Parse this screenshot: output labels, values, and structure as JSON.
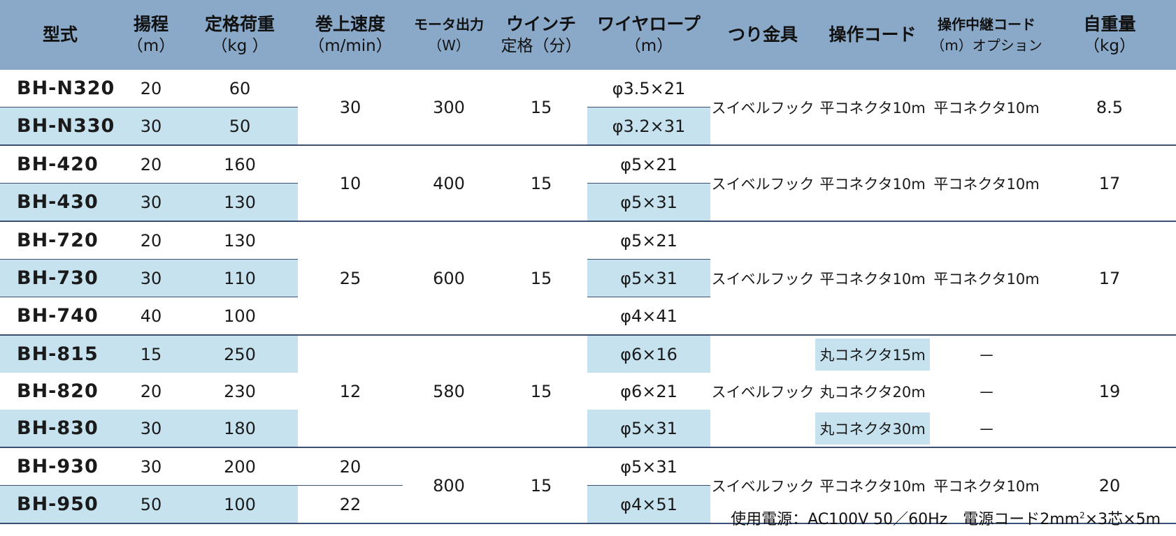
{
  "header": {
    "model": "型式",
    "lift": {
      "title": "揚程",
      "unit": "（m）"
    },
    "load": {
      "title": "定格荷重",
      "unit": "（kg ）"
    },
    "speed": {
      "title": "巻上速度",
      "unit": "（m/min）"
    },
    "motor": {
      "title": "モータ出力",
      "unit": "（W）"
    },
    "winch": {
      "title": "ウインチ",
      "unit": "定格（分）"
    },
    "wire": {
      "title": "ワイヤロープ",
      "unit": "（m）"
    },
    "fitting": {
      "title": "つり金具"
    },
    "cord": {
      "title": "操作コード"
    },
    "relay": {
      "title": "操作中継コード",
      "unit": "（m）オプション"
    },
    "weight": {
      "title": "自重量",
      "unit": "（kg）"
    }
  },
  "rows": [
    {
      "model": "BH-N320",
      "lift": "20",
      "load": "60",
      "wire": "φ3.5×21"
    },
    {
      "model": "BH-N330",
      "lift": "30",
      "load": "50",
      "wire": "φ3.2×31"
    },
    {
      "model": "BH-420",
      "lift": "20",
      "load": "160",
      "wire": "φ5×21"
    },
    {
      "model": "BH-430",
      "lift": "30",
      "load": "130",
      "wire": "φ5×31"
    },
    {
      "model": "BH-720",
      "lift": "20",
      "load": "130",
      "wire": "φ5×21"
    },
    {
      "model": "BH-730",
      "lift": "30",
      "load": "110",
      "wire": "φ5×31"
    },
    {
      "model": "BH-740",
      "lift": "40",
      "load": "100",
      "wire": "φ4×41"
    },
    {
      "model": "BH-815",
      "lift": "15",
      "load": "250",
      "wire": "φ6×16",
      "cord": "丸コネクタ15m",
      "relay": "－"
    },
    {
      "model": "BH-820",
      "lift": "20",
      "load": "230",
      "wire": "φ6×21",
      "cord": "丸コネクタ20m",
      "relay": "－"
    },
    {
      "model": "BH-830",
      "lift": "30",
      "load": "180",
      "wire": "φ5×31",
      "cord": "丸コネクタ30m",
      "relay": "－"
    },
    {
      "model": "BH-930",
      "lift": "30",
      "load": "200",
      "wire": "φ5×31",
      "speed": "20"
    },
    {
      "model": "BH-950",
      "lift": "50",
      "load": "100",
      "wire": "φ4×51",
      "speed": "22"
    }
  ],
  "groups": [
    {
      "speed": "30",
      "motor": "300",
      "winch": "15",
      "fitting": "スイベルフック",
      "cord": "平コネクタ10m",
      "relay": "平コネクタ10m",
      "weight": "8.5"
    },
    {
      "speed": "10",
      "motor": "400",
      "winch": "15",
      "fitting": "スイベルフック",
      "cord": "平コネクタ10m",
      "relay": "平コネクタ10m",
      "weight": "17"
    },
    {
      "speed": "25",
      "motor": "600",
      "winch": "15",
      "fitting": "スイベルフック",
      "cord": "平コネクタ10m",
      "relay": "平コネクタ10m",
      "weight": "17"
    },
    {
      "speed": "12",
      "motor": "580",
      "winch": "15",
      "fitting": "スイベルフック",
      "weight": "19"
    },
    {
      "motor": "800",
      "winch": "15",
      "fitting": "スイベルフック",
      "cord": "平コネクタ10m",
      "relay": "平コネクタ10m",
      "weight": "20"
    }
  ],
  "footer": {
    "text": "使用電源：AC100V  50／60Hz　電源コード2mm",
    "sup": "2",
    "text2": "×3芯×5m"
  }
}
